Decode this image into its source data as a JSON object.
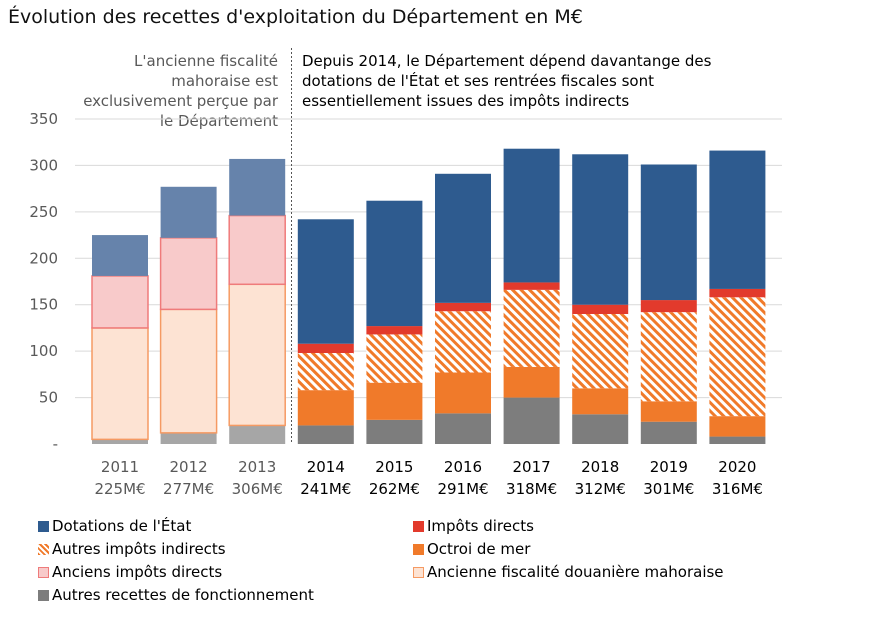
{
  "chart_data": {
    "type": "bar",
    "stacked": true,
    "title": "Évolution des recettes d'exploitation du Département en M€",
    "annotations": {
      "left": "L'ancienne fiscalité mahoraise est exclusivement perçue par le Département",
      "right": "Depuis 2014, le Département dépend davantange des dotations de l'État et ses rentrées fiscales sont essentiellement issues des impôts indirects"
    },
    "categories": [
      "2011",
      "2012",
      "2013",
      "2014",
      "2015",
      "2016",
      "2017",
      "2018",
      "2019",
      "2020"
    ],
    "category_totals": [
      "225M€",
      "277M€",
      "306M€",
      "241M€",
      "262M€",
      "291M€",
      "318M€",
      "312M€",
      "301M€",
      "316M€"
    ],
    "ylim": [
      0,
      350
    ],
    "yticks": [
      0,
      50,
      100,
      150,
      200,
      250,
      300,
      350
    ],
    "ytick_labels": [
      "-",
      "50",
      "100",
      "150",
      "200",
      "250",
      "300",
      "350"
    ],
    "divider_after_category": "2013",
    "series": [
      {
        "name": "Autres recettes de fonctionnement",
        "key": "autres_recettes",
        "values": [
          5,
          12,
          20,
          20,
          26,
          33,
          50,
          32,
          24,
          8
        ]
      },
      {
        "name": "Ancienne fiscalité douanière mahoraise",
        "key": "ancienne_fiscalite",
        "values": [
          120,
          133,
          152,
          0,
          0,
          0,
          0,
          0,
          0,
          0
        ]
      },
      {
        "name": "Octroi de mer",
        "key": "octroi",
        "values": [
          0,
          0,
          0,
          38,
          40,
          44,
          33,
          28,
          22,
          22
        ]
      },
      {
        "name": "Autres impôts indirects",
        "key": "autres_indirects",
        "values": [
          0,
          0,
          0,
          40,
          52,
          66,
          83,
          80,
          96,
          128
        ]
      },
      {
        "name": "Anciens impôts directs",
        "key": "anciens_directs",
        "values": [
          56,
          77,
          74,
          0,
          0,
          0,
          0,
          0,
          0,
          0
        ]
      },
      {
        "name": "Impôts directs",
        "key": "impots_directs",
        "values": [
          0,
          0,
          0,
          10,
          9,
          9,
          8,
          10,
          13,
          9
        ]
      },
      {
        "name": "Dotations de l'État",
        "key": "dotations",
        "values": [
          44,
          55,
          61,
          134,
          135,
          139,
          144,
          162,
          146,
          149
        ]
      }
    ],
    "colors": {
      "dotations": "#2e5b8f",
      "dotations_old": "#6683ab",
      "impots_directs": "#e23a2c",
      "autres_indirects": "#f07a2a",
      "octroi": "#f07a2a",
      "anciens_directs_fill": "#f8caca",
      "anciens_directs_edge": "#ef7b7b",
      "ancienne_fiscalite_fill": "#fde3d3",
      "ancienne_fiscalite_edge": "#f59a63",
      "autres_recettes": "#7d7d7d",
      "autres_recettes_old": "#a6a6a6",
      "grid": "#d9d9d9"
    },
    "legend": [
      {
        "label": "Dotations de l'État",
        "key": "dotations"
      },
      {
        "label": "Impôts directs",
        "key": "impots_directs"
      },
      {
        "label": "Autres impôts indirects",
        "key": "autres_indirects"
      },
      {
        "label": "Octroi de mer",
        "key": "octroi"
      },
      {
        "label": "Anciens impôts directs",
        "key": "anciens_directs"
      },
      {
        "label": "Ancienne fiscalité douanière mahoraise",
        "key": "ancienne_fiscalite"
      },
      {
        "label": "Autres recettes de fonctionnement",
        "key": "autres_recettes"
      }
    ]
  }
}
